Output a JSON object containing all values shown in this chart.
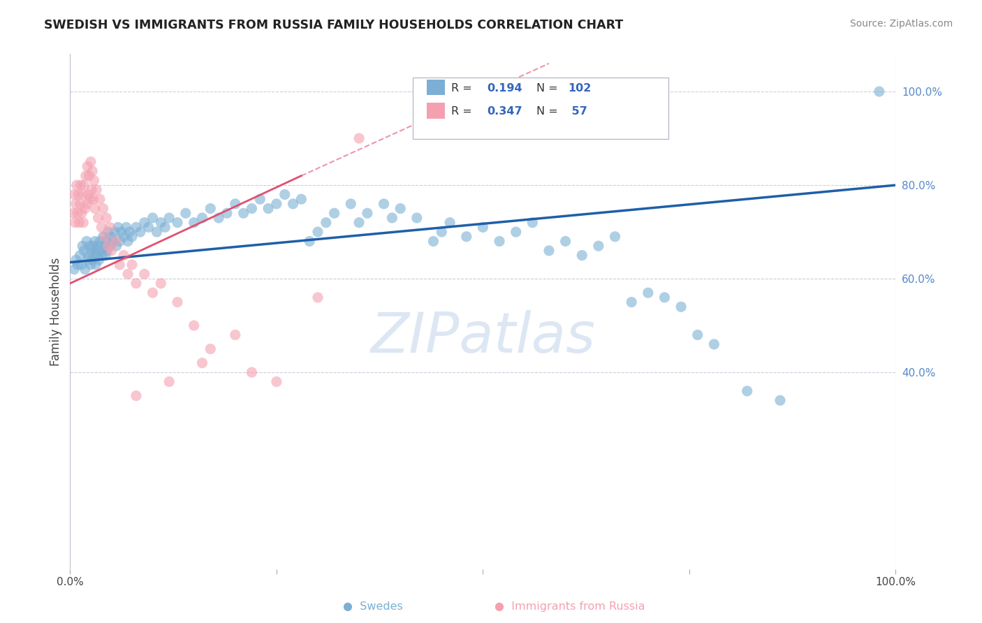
{
  "title": "SWEDISH VS IMMIGRANTS FROM RUSSIA FAMILY HOUSEHOLDS CORRELATION CHART",
  "source": "Source: ZipAtlas.com",
  "ylabel": "Family Households",
  "watermark": "ZIPatlas",
  "blue_color": "#7BAFD4",
  "pink_color": "#F4A0B0",
  "trend_blue": "#1E5FA8",
  "trend_pink": "#E05070",
  "xlim": [
    0.0,
    1.0
  ],
  "ylim": [
    -0.02,
    1.08
  ],
  "ytick_positions": [
    0.4,
    0.6,
    0.8,
    1.0
  ],
  "ytick_labels": [
    "40.0%",
    "60.0%",
    "80.0%",
    "100.0%"
  ],
  "figsize": [
    14.06,
    8.92
  ],
  "dpi": 100,
  "blue_scatter": [
    [
      0.005,
      0.62
    ],
    [
      0.007,
      0.64
    ],
    [
      0.009,
      0.63
    ],
    [
      0.012,
      0.65
    ],
    [
      0.014,
      0.63
    ],
    [
      0.015,
      0.67
    ],
    [
      0.017,
      0.66
    ],
    [
      0.018,
      0.62
    ],
    [
      0.02,
      0.68
    ],
    [
      0.021,
      0.64
    ],
    [
      0.022,
      0.65
    ],
    [
      0.024,
      0.67
    ],
    [
      0.025,
      0.63
    ],
    [
      0.026,
      0.66
    ],
    [
      0.027,
      0.64
    ],
    [
      0.028,
      0.67
    ],
    [
      0.029,
      0.65
    ],
    [
      0.03,
      0.68
    ],
    [
      0.031,
      0.63
    ],
    [
      0.032,
      0.66
    ],
    [
      0.033,
      0.65
    ],
    [
      0.034,
      0.67
    ],
    [
      0.035,
      0.64
    ],
    [
      0.036,
      0.68
    ],
    [
      0.038,
      0.66
    ],
    [
      0.039,
      0.65
    ],
    [
      0.04,
      0.69
    ],
    [
      0.042,
      0.67
    ],
    [
      0.043,
      0.65
    ],
    [
      0.044,
      0.68
    ],
    [
      0.045,
      0.66
    ],
    [
      0.046,
      0.7
    ],
    [
      0.048,
      0.67
    ],
    [
      0.05,
      0.69
    ],
    [
      0.052,
      0.68
    ],
    [
      0.054,
      0.7
    ],
    [
      0.056,
      0.67
    ],
    [
      0.058,
      0.71
    ],
    [
      0.06,
      0.68
    ],
    [
      0.062,
      0.7
    ],
    [
      0.065,
      0.69
    ],
    [
      0.068,
      0.71
    ],
    [
      0.07,
      0.68
    ],
    [
      0.072,
      0.7
    ],
    [
      0.075,
      0.69
    ],
    [
      0.08,
      0.71
    ],
    [
      0.085,
      0.7
    ],
    [
      0.09,
      0.72
    ],
    [
      0.095,
      0.71
    ],
    [
      0.1,
      0.73
    ],
    [
      0.105,
      0.7
    ],
    [
      0.11,
      0.72
    ],
    [
      0.115,
      0.71
    ],
    [
      0.12,
      0.73
    ],
    [
      0.13,
      0.72
    ],
    [
      0.14,
      0.74
    ],
    [
      0.15,
      0.72
    ],
    [
      0.16,
      0.73
    ],
    [
      0.17,
      0.75
    ],
    [
      0.18,
      0.73
    ],
    [
      0.19,
      0.74
    ],
    [
      0.2,
      0.76
    ],
    [
      0.21,
      0.74
    ],
    [
      0.22,
      0.75
    ],
    [
      0.23,
      0.77
    ],
    [
      0.24,
      0.75
    ],
    [
      0.25,
      0.76
    ],
    [
      0.26,
      0.78
    ],
    [
      0.27,
      0.76
    ],
    [
      0.28,
      0.77
    ],
    [
      0.29,
      0.68
    ],
    [
      0.3,
      0.7
    ],
    [
      0.31,
      0.72
    ],
    [
      0.32,
      0.74
    ],
    [
      0.34,
      0.76
    ],
    [
      0.35,
      0.72
    ],
    [
      0.36,
      0.74
    ],
    [
      0.38,
      0.76
    ],
    [
      0.39,
      0.73
    ],
    [
      0.4,
      0.75
    ],
    [
      0.42,
      0.73
    ],
    [
      0.44,
      0.68
    ],
    [
      0.45,
      0.7
    ],
    [
      0.46,
      0.72
    ],
    [
      0.48,
      0.69
    ],
    [
      0.5,
      0.71
    ],
    [
      0.52,
      0.68
    ],
    [
      0.54,
      0.7
    ],
    [
      0.56,
      0.72
    ],
    [
      0.58,
      0.66
    ],
    [
      0.6,
      0.68
    ],
    [
      0.62,
      0.65
    ],
    [
      0.64,
      0.67
    ],
    [
      0.66,
      0.69
    ],
    [
      0.68,
      0.55
    ],
    [
      0.7,
      0.57
    ],
    [
      0.72,
      0.56
    ],
    [
      0.74,
      0.54
    ],
    [
      0.76,
      0.48
    ],
    [
      0.78,
      0.46
    ],
    [
      0.82,
      0.36
    ],
    [
      0.86,
      0.34
    ],
    [
      0.98,
      1.0
    ]
  ],
  "pink_scatter": [
    [
      0.004,
      0.74
    ],
    [
      0.005,
      0.78
    ],
    [
      0.006,
      0.72
    ],
    [
      0.007,
      0.76
    ],
    [
      0.008,
      0.8
    ],
    [
      0.009,
      0.74
    ],
    [
      0.01,
      0.78
    ],
    [
      0.011,
      0.72
    ],
    [
      0.012,
      0.76
    ],
    [
      0.013,
      0.8
    ],
    [
      0.014,
      0.74
    ],
    [
      0.015,
      0.78
    ],
    [
      0.016,
      0.72
    ],
    [
      0.017,
      0.8
    ],
    [
      0.018,
      0.75
    ],
    [
      0.019,
      0.82
    ],
    [
      0.02,
      0.76
    ],
    [
      0.021,
      0.84
    ],
    [
      0.022,
      0.78
    ],
    [
      0.023,
      0.82
    ],
    [
      0.024,
      0.77
    ],
    [
      0.025,
      0.85
    ],
    [
      0.026,
      0.79
    ],
    [
      0.027,
      0.83
    ],
    [
      0.028,
      0.77
    ],
    [
      0.029,
      0.81
    ],
    [
      0.03,
      0.75
    ],
    [
      0.032,
      0.79
    ],
    [
      0.034,
      0.73
    ],
    [
      0.036,
      0.77
    ],
    [
      0.038,
      0.71
    ],
    [
      0.04,
      0.75
    ],
    [
      0.042,
      0.69
    ],
    [
      0.044,
      0.73
    ],
    [
      0.046,
      0.67
    ],
    [
      0.048,
      0.71
    ],
    [
      0.05,
      0.66
    ],
    [
      0.055,
      0.68
    ],
    [
      0.06,
      0.63
    ],
    [
      0.065,
      0.65
    ],
    [
      0.07,
      0.61
    ],
    [
      0.075,
      0.63
    ],
    [
      0.08,
      0.59
    ],
    [
      0.09,
      0.61
    ],
    [
      0.1,
      0.57
    ],
    [
      0.11,
      0.59
    ],
    [
      0.13,
      0.55
    ],
    [
      0.15,
      0.5
    ],
    [
      0.17,
      0.45
    ],
    [
      0.2,
      0.48
    ],
    [
      0.22,
      0.4
    ],
    [
      0.25,
      0.38
    ],
    [
      0.3,
      0.56
    ],
    [
      0.35,
      0.9
    ],
    [
      0.08,
      0.35
    ],
    [
      0.12,
      0.38
    ],
    [
      0.16,
      0.42
    ]
  ]
}
